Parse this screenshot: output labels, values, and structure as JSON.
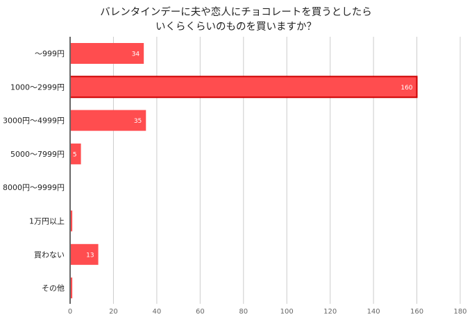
{
  "chart_data": {
    "type": "bar",
    "orientation": "horizontal",
    "title_lines": [
      "バレンタインデーに夫や恋人にチョコレートを買うとしたら",
      "いくらくらいのものを買いますか？"
    ],
    "categories": [
      "～999円",
      "1000～2999円",
      "3000円～4999円",
      "5000～7999円",
      "8000円～9999円",
      "1万円以上",
      "買わない",
      "その他"
    ],
    "values": [
      34,
      160,
      35,
      5,
      0,
      1,
      13,
      1
    ],
    "data_labels": [
      "34",
      "160",
      "35",
      "5",
      "",
      "",
      "13",
      ""
    ],
    "highlighted_category": "1000～2999円",
    "xlim": [
      0,
      180
    ],
    "xticks": [
      "0",
      "20",
      "40",
      "60",
      "80",
      "100",
      "120",
      "140",
      "160",
      "180"
    ],
    "grid": true,
    "colors": {
      "bar": "#ff4d4f",
      "highlight_border": "#cc0000",
      "grid": "#cccccc",
      "axis": "#666666"
    }
  }
}
